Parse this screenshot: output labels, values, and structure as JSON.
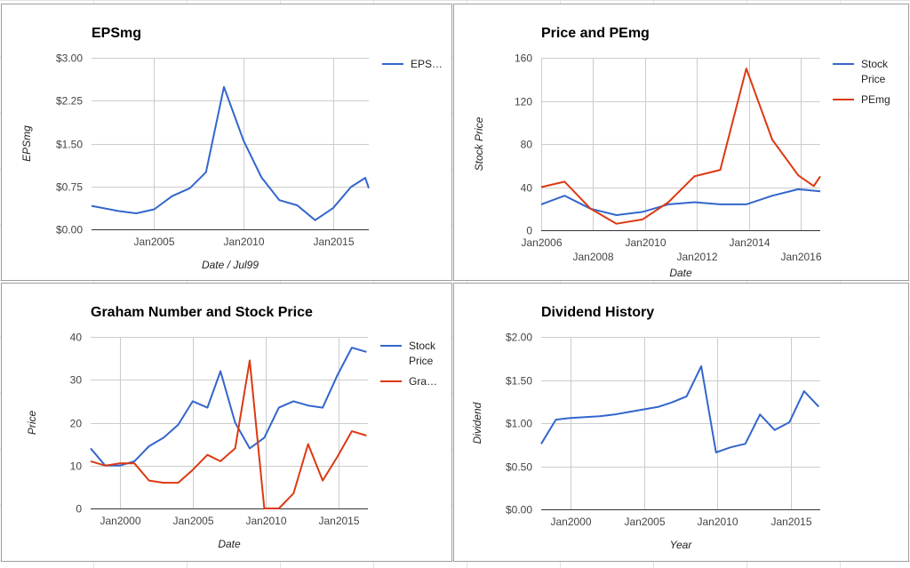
{
  "chart_data": [
    {
      "type": "line",
      "title": "EPSmg",
      "xlabel": "Date / Jul99",
      "ylabel": "EPSmg",
      "x_min": 2001.5,
      "x_max": 2017.0,
      "x_ticks": [
        {
          "x": 2005,
          "label": "Jan2005"
        },
        {
          "x": 2010,
          "label": "Jan2010"
        },
        {
          "x": 2015,
          "label": "Jan2015"
        }
      ],
      "ylim": [
        0,
        3
      ],
      "y_ticks": [
        {
          "v": 0,
          "label": "$0.00"
        },
        {
          "v": 0.75,
          "label": "$0.75"
        },
        {
          "v": 1.5,
          "label": "$1.50"
        },
        {
          "v": 2.25,
          "label": "$2.25"
        },
        {
          "v": 3,
          "label": "$3.00"
        }
      ],
      "legend_position": "right",
      "grid": true,
      "series": [
        {
          "name": "EPS…",
          "color": "#3366cc",
          "x": [
            2001.5,
            2003,
            2004,
            2005,
            2006,
            2007,
            2007.9,
            2008.9,
            2010,
            2011,
            2012,
            2013,
            2014,
            2015,
            2016,
            2016.8,
            2017
          ],
          "y": [
            0.41,
            0.32,
            0.28,
            0.35,
            0.58,
            0.72,
            1.0,
            2.49,
            1.55,
            0.91,
            0.51,
            0.42,
            0.16,
            0.37,
            0.74,
            0.9,
            0.72
          ]
        }
      ]
    },
    {
      "type": "line",
      "title": "Price and PEmg",
      "xlabel": "Date",
      "ylabel": "Stock Price",
      "x_min": 2006.0,
      "x_max": 2016.75,
      "x_ticks": [
        {
          "x": 2006,
          "label": "Jan2006",
          "row": 0
        },
        {
          "x": 2008,
          "label": "Jan2008",
          "row": 1
        },
        {
          "x": 2010,
          "label": "Jan2010",
          "row": 0
        },
        {
          "x": 2012,
          "label": "Jan2012",
          "row": 1
        },
        {
          "x": 2014,
          "label": "Jan2014",
          "row": 0
        },
        {
          "x": 2016,
          "label": "Jan2016",
          "row": 1
        }
      ],
      "ylim": [
        0,
        160
      ],
      "y_ticks": [
        {
          "v": 0,
          "label": "0"
        },
        {
          "v": 40,
          "label": "40"
        },
        {
          "v": 80,
          "label": "80"
        },
        {
          "v": 120,
          "label": "120"
        },
        {
          "v": 160,
          "label": "160"
        }
      ],
      "legend_position": "right",
      "grid": true,
      "series": [
        {
          "name": "Stock Price",
          "color": "#3366cc",
          "x": [
            2006,
            2006.9,
            2007.9,
            2008.9,
            2009.9,
            2010.9,
            2011.9,
            2012.9,
            2013.9,
            2014.9,
            2015.9,
            2016.75
          ],
          "y": [
            24,
            32,
            20,
            14,
            17,
            24,
            26,
            24,
            24,
            32,
            38,
            36
          ]
        },
        {
          "name": "PEmg",
          "color": "#dc3912",
          "x": [
            2006,
            2006.9,
            2007.9,
            2008.9,
            2009.9,
            2010.9,
            2011.9,
            2012.9,
            2013.9,
            2014.9,
            2015.9,
            2016.5,
            2016.75
          ],
          "y": [
            40,
            45,
            20,
            6,
            10,
            26,
            50,
            56,
            150,
            84,
            51,
            41,
            50
          ]
        }
      ]
    },
    {
      "type": "line",
      "title": "Graham Number and Stock Price",
      "xlabel": "Date",
      "ylabel": "Price",
      "x_min": 1998.0,
      "x_max": 2017.0,
      "x_ticks": [
        {
          "x": 2000,
          "label": "Jan2000"
        },
        {
          "x": 2005,
          "label": "Jan2005"
        },
        {
          "x": 2010,
          "label": "Jan2010"
        },
        {
          "x": 2015,
          "label": "Jan2015"
        }
      ],
      "ylim": [
        0,
        40
      ],
      "y_ticks": [
        {
          "v": 0,
          "label": "0"
        },
        {
          "v": 10,
          "label": "10"
        },
        {
          "v": 20,
          "label": "20"
        },
        {
          "v": 30,
          "label": "30"
        },
        {
          "v": 40,
          "label": "40"
        }
      ],
      "legend_position": "right",
      "grid": true,
      "series": [
        {
          "name": "Stock Price",
          "color": "#3366cc",
          "x": [
            1998,
            1999,
            2000,
            2001,
            2002,
            2003,
            2004,
            2005,
            2006,
            2006.9,
            2007.9,
            2008.9,
            2009.9,
            2010.9,
            2011.9,
            2012.9,
            2013.9,
            2014.9,
            2015.9,
            2016.9
          ],
          "y": [
            14,
            10,
            10,
            11,
            14.5,
            16.5,
            19.5,
            25,
            23.5,
            32,
            20,
            14,
            16.5,
            23.5,
            25,
            24,
            23.5,
            31,
            37.5,
            36.5
          ]
        },
        {
          "name": "Gra…",
          "color": "#dc3912",
          "x": [
            1998,
            1999,
            2000,
            2001,
            2002,
            2003,
            2004,
            2005,
            2006,
            2006.9,
            2007.9,
            2008.9,
            2009.9,
            2010.9,
            2011.9,
            2012.9,
            2013.9,
            2014.9,
            2015.9,
            2016.9
          ],
          "y": [
            11,
            10,
            10.5,
            10.5,
            6.5,
            6,
            6,
            9,
            12.5,
            11,
            14,
            34.5,
            0,
            0,
            3.5,
            15,
            6.5,
            12,
            18,
            17
          ]
        }
      ]
    },
    {
      "type": "line",
      "title": "Dividend History",
      "xlabel": "Year",
      "ylabel": "Dividend",
      "x_min": 1998.0,
      "x_max": 2017.0,
      "x_ticks": [
        {
          "x": 2000,
          "label": "Jan2000"
        },
        {
          "x": 2005,
          "label": "Jan2005"
        },
        {
          "x": 2010,
          "label": "Jan2010"
        },
        {
          "x": 2015,
          "label": "Jan2015"
        }
      ],
      "ylim": [
        0,
        2
      ],
      "y_ticks": [
        {
          "v": 0,
          "label": "$0.00"
        },
        {
          "v": 0.5,
          "label": "$0.50"
        },
        {
          "v": 1.0,
          "label": "$1.00"
        },
        {
          "v": 1.5,
          "label": "$1.50"
        },
        {
          "v": 2.0,
          "label": "$2.00"
        }
      ],
      "legend_position": "none",
      "grid": true,
      "series": [
        {
          "name": "",
          "color": "#3366cc",
          "x": [
            1998,
            1999,
            2000,
            2001,
            2002,
            2003,
            2004,
            2005,
            2006,
            2006.9,
            2007.9,
            2008.9,
            2009.9,
            2010.9,
            2011.9,
            2012.9,
            2013.9,
            2014.9,
            2015.9,
            2016.9
          ],
          "y": [
            0.76,
            1.04,
            1.06,
            1.07,
            1.08,
            1.1,
            1.13,
            1.16,
            1.19,
            1.24,
            1.31,
            1.66,
            0.66,
            0.72,
            0.76,
            1.1,
            0.92,
            1.01,
            1.37,
            1.19
          ]
        }
      ]
    }
  ]
}
